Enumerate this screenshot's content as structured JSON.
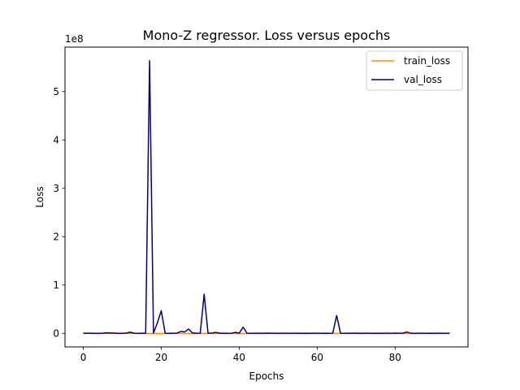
{
  "chart_data": {
    "type": "line",
    "title": "Mono-Z regressor. Loss versus epochs",
    "xlabel": "Epochs",
    "ylabel": "Loss",
    "y_offset_label": "1e8",
    "xlim": [
      -4.7,
      98.7
    ],
    "ylim": [
      -0.28,
      5.92
    ],
    "x_ticks": [
      0,
      20,
      40,
      60,
      80
    ],
    "y_ticks": [
      0,
      1,
      2,
      3,
      4,
      5
    ],
    "grid": false,
    "legend_position": "top-right",
    "series": [
      {
        "name": "train_loss",
        "color": "#ff8c00",
        "x": [
          0,
          1,
          2,
          3,
          4,
          5,
          6,
          7,
          8,
          9,
          10,
          11,
          12,
          13,
          14,
          15,
          16,
          17,
          18,
          19,
          20,
          21,
          22,
          23,
          24,
          25,
          26,
          27,
          28,
          29,
          30,
          31,
          32,
          33,
          34,
          35,
          36,
          37,
          38,
          39,
          40,
          41,
          42,
          43,
          44,
          45,
          46,
          47,
          48,
          49,
          50,
          51,
          52,
          53,
          54,
          55,
          56,
          57,
          58,
          59,
          60,
          61,
          62,
          63,
          64,
          65,
          66,
          67,
          68,
          69,
          70,
          71,
          72,
          73,
          74,
          75,
          76,
          77,
          78,
          79,
          80,
          81,
          82,
          83,
          84,
          85,
          86,
          87,
          88,
          89,
          90,
          91,
          92,
          93,
          94
        ],
        "values": [
          0,
          0,
          0,
          0,
          0,
          0,
          0,
          0,
          0,
          0,
          0,
          0,
          0,
          0,
          0,
          0,
          0,
          0,
          0,
          0,
          0,
          0,
          0,
          0,
          0,
          0,
          0,
          0,
          0,
          0,
          0,
          0,
          0,
          0,
          0,
          0,
          0,
          0,
          0,
          0,
          0,
          0,
          0,
          0,
          0,
          0,
          0,
          0,
          0,
          0,
          0,
          0,
          0,
          0,
          0,
          0,
          0,
          0,
          0,
          0,
          0,
          0,
          0,
          0,
          0,
          0,
          0,
          0,
          0,
          0,
          0,
          0,
          0,
          0,
          0,
          0,
          0,
          0,
          0,
          0,
          0,
          0,
          0,
          0,
          0,
          0,
          0,
          0,
          0,
          0,
          0,
          0,
          0,
          0,
          0
        ]
      },
      {
        "name": "val_loss",
        "color": "#000080",
        "x": [
          0,
          1,
          2,
          3,
          4,
          5,
          6,
          7,
          8,
          9,
          10,
          11,
          12,
          13,
          14,
          15,
          16,
          17,
          18,
          19,
          20,
          21,
          22,
          23,
          24,
          25,
          26,
          27,
          28,
          29,
          30,
          31,
          32,
          33,
          34,
          35,
          36,
          37,
          38,
          39,
          40,
          41,
          42,
          43,
          44,
          45,
          46,
          47,
          48,
          49,
          50,
          51,
          52,
          53,
          54,
          55,
          56,
          57,
          58,
          59,
          60,
          61,
          62,
          63,
          64,
          65,
          66,
          67,
          68,
          69,
          70,
          71,
          72,
          73,
          74,
          75,
          76,
          77,
          78,
          79,
          80,
          81,
          82,
          83,
          84,
          85,
          86,
          87,
          88,
          89,
          90,
          91,
          92,
          93,
          94
        ],
        "values": [
          0.005,
          0.004,
          0.003,
          0.002,
          0.001,
          0.004,
          0.012,
          0.008,
          0.005,
          0.002,
          0.004,
          0.006,
          0.025,
          0.003,
          0.002,
          0.004,
          0.003,
          5.64,
          0.005,
          0.22,
          0.47,
          0.004,
          0.002,
          0.003,
          0.005,
          0.04,
          0.03,
          0.09,
          0.01,
          0.004,
          0.005,
          0.81,
          0.004,
          0.006,
          0.02,
          0.003,
          0.004,
          0.002,
          0.003,
          0.02,
          0.004,
          0.13,
          0.003,
          0.002,
          0.004,
          0.003,
          0.002,
          0.005,
          0.004,
          0.003,
          0.002,
          0.004,
          0.003,
          0.002,
          0.003,
          0.004,
          0.002,
          0.003,
          0.002,
          0.004,
          0.003,
          0.002,
          0.003,
          0.002,
          0.004,
          0.37,
          0.003,
          0.002,
          0.004,
          0.003,
          0.006,
          0.002,
          0.003,
          0.004,
          0.002,
          0.003,
          0.002,
          0.004,
          0.003,
          0.002,
          0.005,
          0.003,
          0.004,
          0.03,
          0.003,
          0.002,
          0.004,
          0.003,
          0.002,
          0.003,
          0.002,
          0.004,
          0.003,
          0.002,
          0.003
        ]
      }
    ]
  }
}
